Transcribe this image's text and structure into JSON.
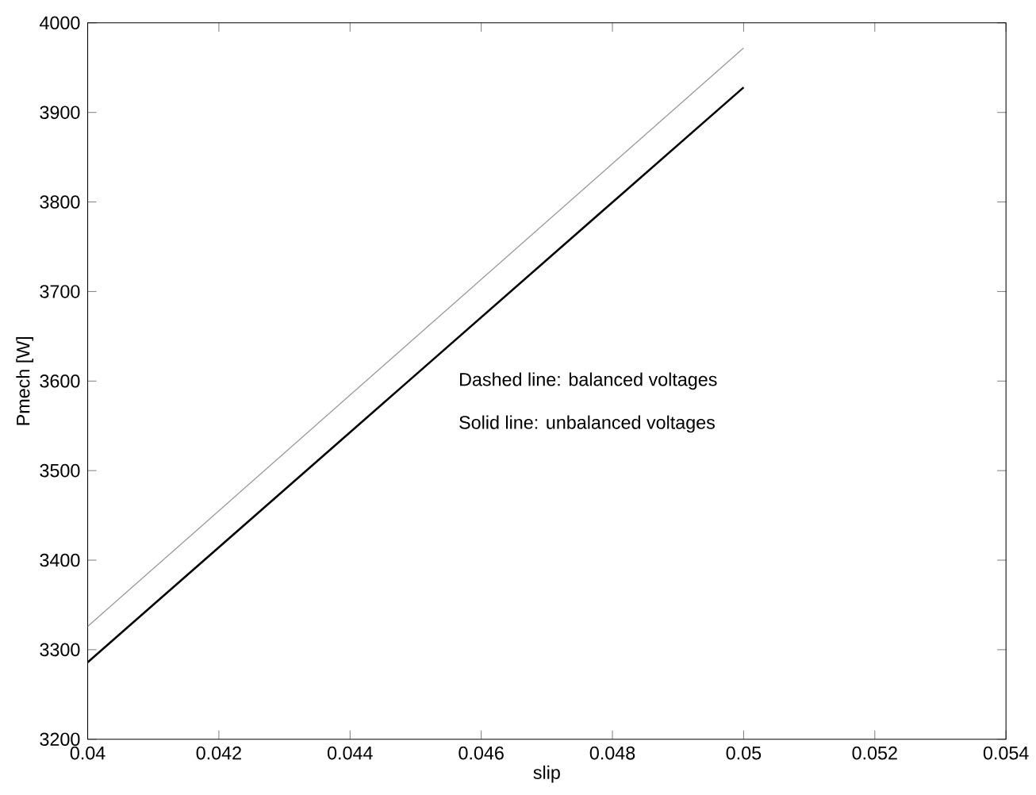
{
  "chart_data": {
    "type": "line",
    "xlabel": "slip",
    "ylabel": "Pmech [W]",
    "x": [
      0.04,
      0.05
    ],
    "series": [
      {
        "color": "#999999",
        "values": [
          3326,
          3972
        ]
      },
      {
        "color": "#000000",
        "values": [
          3286,
          3928
        ]
      }
    ],
    "xlim": [
      0.04,
      0.054
    ],
    "ylim": [
      3200,
      4000
    ],
    "xticks": [
      0.04,
      0.042,
      0.044,
      0.046,
      0.048,
      0.05,
      0.052,
      0.054
    ],
    "yticks": [
      3200,
      3300,
      3400,
      3500,
      3600,
      3700,
      3800,
      3900,
      4000
    ],
    "annotations": [
      "Dashed line: balanced voltages",
      "Solid line: unbalanced voltages"
    ],
    "grid": false,
    "marker": "none",
    "line_style": "solid"
  }
}
